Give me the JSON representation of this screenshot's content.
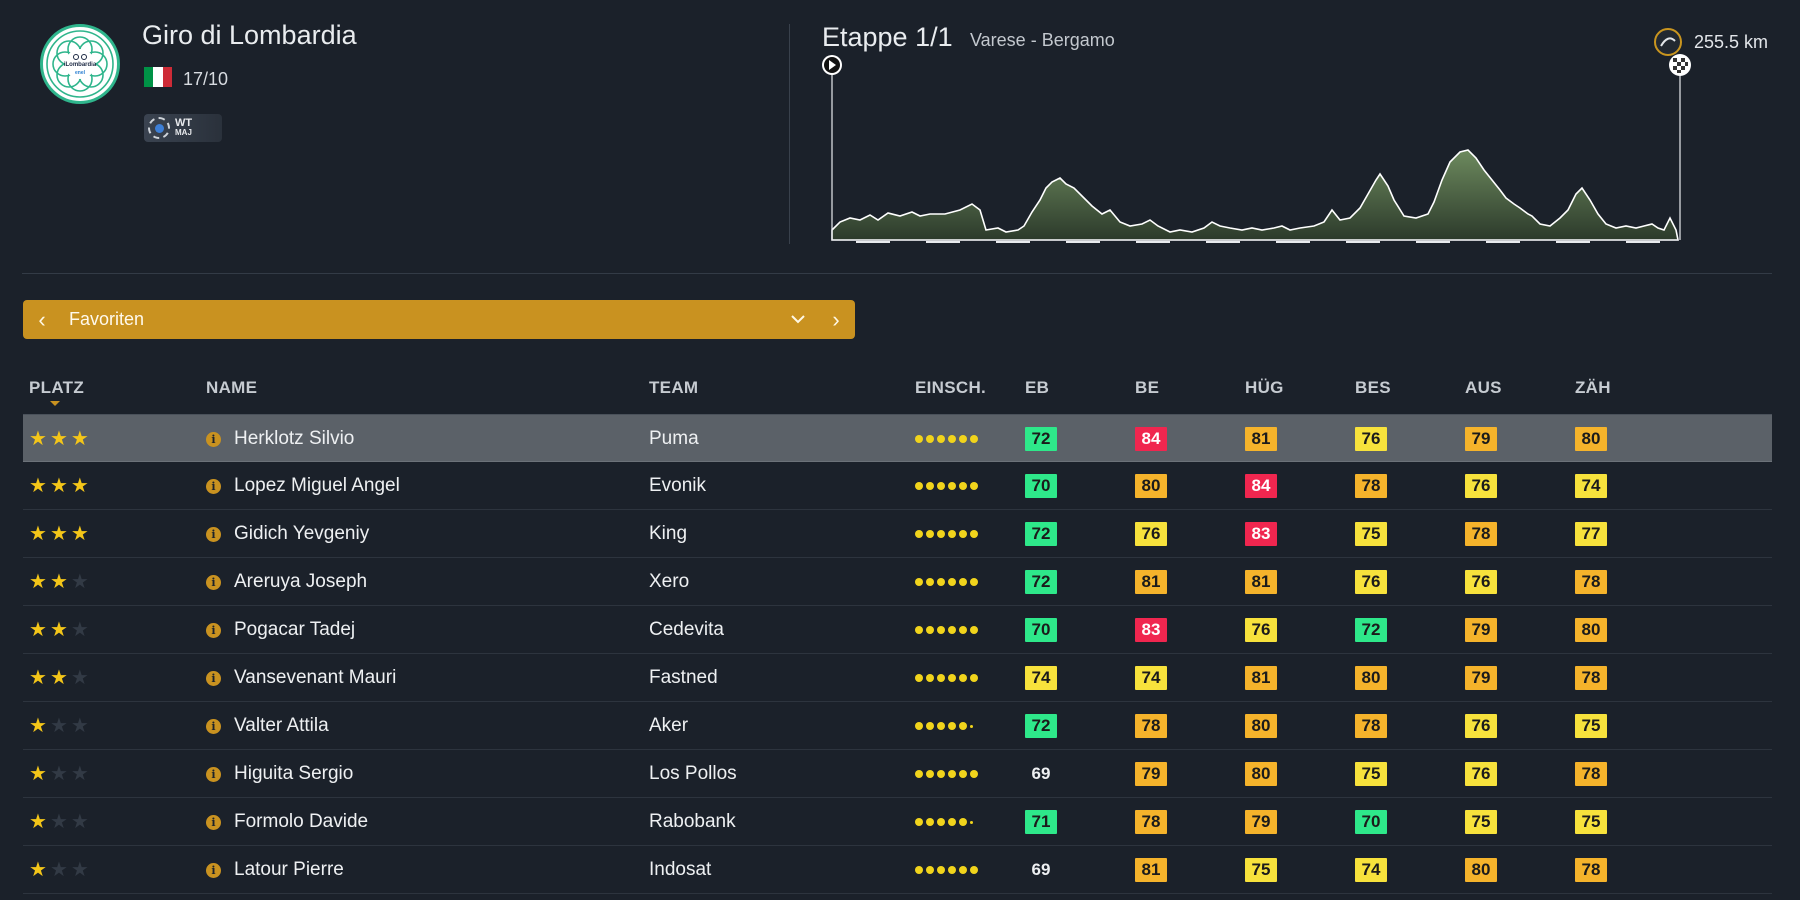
{
  "race": {
    "title": "Giro di Lombardia",
    "date": "17/10",
    "logo_text": "iLombardia",
    "flag_colors": [
      "#009246",
      "#ffffff",
      "#ce2b37"
    ],
    "badge_top": "WT",
    "badge_bottom": "MAJ"
  },
  "stage": {
    "title": "Etappe 1/1",
    "route": "Varese - Bergamo",
    "distance": "255.5 km",
    "start_icon": "play-icon",
    "finish_icon": "checkered-flag-icon"
  },
  "selector": {
    "label": "Favoriten",
    "prev_icon": "chevron-left-icon",
    "next_icon": "chevron-right-icon",
    "dropdown_icon": "chevron-down-icon"
  },
  "table": {
    "headers": {
      "platz": "PLATZ",
      "name": "NAME",
      "team": "TEAM",
      "einsch": "EINSCH.",
      "eb": "EB",
      "be": "BE",
      "hug": "HÜG",
      "bes": "BES",
      "aus": "AUS",
      "zah": "ZÄH"
    },
    "stat_colors": {
      "green": "#2ee88a",
      "yellow": "#f7e23c",
      "orange": "#f5b32b",
      "red": "#f0264f"
    },
    "rows": [
      {
        "stars": 3,
        "name": "Herklotz Silvio",
        "team": "Puma",
        "dots": "6",
        "stats": [
          {
            "v": "72",
            "c": "green"
          },
          {
            "v": "84",
            "c": "red"
          },
          {
            "v": "81",
            "c": "orange"
          },
          {
            "v": "76",
            "c": "yellow"
          },
          {
            "v": "79",
            "c": "orange"
          },
          {
            "v": "80",
            "c": "orange"
          }
        ]
      },
      {
        "stars": 3,
        "name": "Lopez Miguel Angel",
        "team": "Evonik",
        "dots": "6",
        "stats": [
          {
            "v": "70",
            "c": "green"
          },
          {
            "v": "80",
            "c": "orange"
          },
          {
            "v": "84",
            "c": "red"
          },
          {
            "v": "78",
            "c": "orange"
          },
          {
            "v": "76",
            "c": "yellow"
          },
          {
            "v": "74",
            "c": "yellow"
          }
        ]
      },
      {
        "stars": 3,
        "name": "Gidich Yevgeniy",
        "team": "King",
        "dots": "6",
        "stats": [
          {
            "v": "72",
            "c": "green"
          },
          {
            "v": "76",
            "c": "yellow"
          },
          {
            "v": "83",
            "c": "red"
          },
          {
            "v": "75",
            "c": "yellow"
          },
          {
            "v": "78",
            "c": "orange"
          },
          {
            "v": "77",
            "c": "yellow"
          }
        ]
      },
      {
        "stars": 2,
        "name": "Areruya Joseph",
        "team": "Xero",
        "dots": "5.5",
        "stats": [
          {
            "v": "72",
            "c": "green"
          },
          {
            "v": "81",
            "c": "orange"
          },
          {
            "v": "81",
            "c": "orange"
          },
          {
            "v": "76",
            "c": "yellow"
          },
          {
            "v": "76",
            "c": "yellow"
          },
          {
            "v": "78",
            "c": "orange"
          }
        ]
      },
      {
        "stars": 2,
        "name": "Pogacar Tadej",
        "team": "Cedevita",
        "dots": "6",
        "stats": [
          {
            "v": "70",
            "c": "green"
          },
          {
            "v": "83",
            "c": "red"
          },
          {
            "v": "76",
            "c": "yellow"
          },
          {
            "v": "72",
            "c": "green"
          },
          {
            "v": "79",
            "c": "orange"
          },
          {
            "v": "80",
            "c": "orange"
          }
        ]
      },
      {
        "stars": 2,
        "name": "Vansevenant Mauri",
        "team": "Fastned",
        "dots": "5.5",
        "stats": [
          {
            "v": "74",
            "c": "yellow"
          },
          {
            "v": "74",
            "c": "yellow"
          },
          {
            "v": "81",
            "c": "orange"
          },
          {
            "v": "80",
            "c": "orange"
          },
          {
            "v": "79",
            "c": "orange"
          },
          {
            "v": "78",
            "c": "orange"
          }
        ]
      },
      {
        "stars": 1,
        "name": "Valter Attila",
        "team": "Aker",
        "dots": "5",
        "stats": [
          {
            "v": "72",
            "c": "green"
          },
          {
            "v": "78",
            "c": "orange"
          },
          {
            "v": "80",
            "c": "orange"
          },
          {
            "v": "78",
            "c": "orange"
          },
          {
            "v": "76",
            "c": "yellow"
          },
          {
            "v": "75",
            "c": "yellow"
          }
        ]
      },
      {
        "stars": 1,
        "name": "Higuita Sergio",
        "team": "Los Pollos",
        "dots": "5.5",
        "stats": [
          {
            "v": "69",
            "c": "plain"
          },
          {
            "v": "79",
            "c": "orange"
          },
          {
            "v": "80",
            "c": "orange"
          },
          {
            "v": "75",
            "c": "yellow"
          },
          {
            "v": "76",
            "c": "yellow"
          },
          {
            "v": "78",
            "c": "orange"
          }
        ]
      },
      {
        "stars": 1,
        "name": "Formolo Davide",
        "team": "Rabobank",
        "dots": "5",
        "stats": [
          {
            "v": "71",
            "c": "green"
          },
          {
            "v": "78",
            "c": "orange"
          },
          {
            "v": "79",
            "c": "orange"
          },
          {
            "v": "70",
            "c": "green"
          },
          {
            "v": "75",
            "c": "yellow"
          },
          {
            "v": "75",
            "c": "yellow"
          }
        ]
      },
      {
        "stars": 1,
        "name": "Latour Pierre",
        "team": "Indosat",
        "dots": "5.5",
        "stats": [
          {
            "v": "69",
            "c": "plain"
          },
          {
            "v": "81",
            "c": "orange"
          },
          {
            "v": "75",
            "c": "yellow"
          },
          {
            "v": "74",
            "c": "yellow"
          },
          {
            "v": "80",
            "c": "orange"
          },
          {
            "v": "78",
            "c": "orange"
          }
        ]
      }
    ]
  }
}
